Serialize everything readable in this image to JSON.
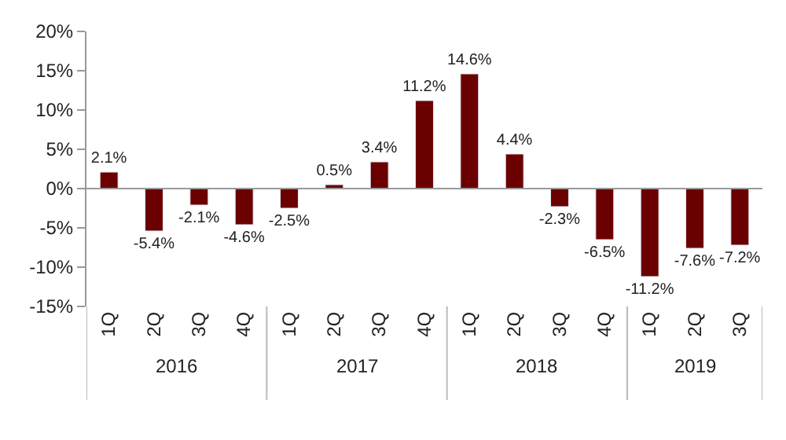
{
  "chart_data": {
    "type": "bar",
    "categories": [
      "1Q",
      "2Q",
      "3Q",
      "4Q",
      "1Q",
      "2Q",
      "3Q",
      "4Q",
      "1Q",
      "2Q",
      "3Q",
      "4Q",
      "1Q",
      "2Q",
      "3Q"
    ],
    "values": [
      2.1,
      -5.4,
      -2.1,
      -4.6,
      -2.5,
      0.5,
      3.4,
      11.2,
      14.6,
      4.4,
      -2.3,
      -6.5,
      -11.2,
      -7.6,
      -7.2
    ],
    "value_labels": [
      "2.1%",
      "-5.4%",
      "-2.1%",
      "-4.6%",
      "-2.5%",
      "0.5%",
      "3.4%",
      "11.2%",
      "14.6%",
      "4.4%",
      "-2.3%",
      "-6.5%",
      "-11.2%",
      "-7.6%",
      "-7.2%"
    ],
    "color": "#6b0000",
    "ylim": [
      -15,
      20
    ],
    "yticks": [
      {
        "value": -15,
        "label": "-15%"
      },
      {
        "value": -10,
        "label": "-10%"
      },
      {
        "value": -5,
        "label": "-5%"
      },
      {
        "value": 0,
        "label": "0%"
      },
      {
        "value": 5,
        "label": "5%"
      },
      {
        "value": 10,
        "label": "10%"
      },
      {
        "value": 15,
        "label": "15%"
      },
      {
        "value": 20,
        "label": "20%"
      }
    ],
    "annotations": [
      "2016",
      "2017",
      "2018",
      "2019"
    ]
  }
}
